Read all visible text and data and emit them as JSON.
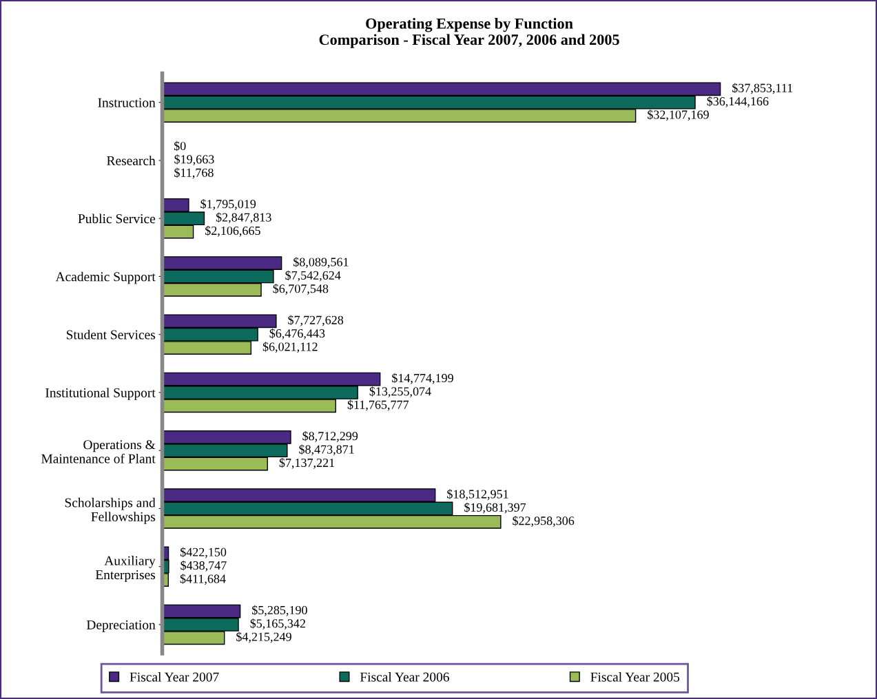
{
  "chart_data": {
    "type": "bar",
    "orientation": "horizontal",
    "title": "Operating Expense by Function\nComparison - Fiscal Year 2007, 2006 and 2005",
    "categories": [
      "Instruction",
      "Research",
      "Public Service",
      "Academic Support",
      "Student Services",
      "Institutional Support",
      "Operations &\nMaintenance of Plant",
      "Scholarships and\nFellowships",
      "Auxiliary\nEnterprises",
      "Depreciation"
    ],
    "series": [
      {
        "name": "Fiscal Year 2007",
        "color": "#4b2a84",
        "values": [
          37853111,
          0,
          1795019,
          8089561,
          7727628,
          14774199,
          8712299,
          18512951,
          422150,
          5285190
        ],
        "value_labels": [
          "$37,853,111",
          "$0",
          "$1,795,019",
          "$8,089,561",
          "$7,727,628",
          "$14,774,199",
          "$8,712,299",
          "$18,512,951",
          "$422,150",
          "$5,285,190"
        ]
      },
      {
        "name": "Fiscal Year 2006",
        "color": "#0c6b5c",
        "values": [
          36144166,
          19663,
          2847813,
          7542624,
          6476443,
          13255074,
          8473871,
          19681397,
          438747,
          5165342
        ],
        "value_labels": [
          "$36,144,166",
          "$19,663",
          "$2,847,813",
          "$7,542,624",
          "$6,476,443",
          "$13,255,074",
          "$8,473,871",
          "$19,681,397",
          "$438,747",
          "$5,165,342"
        ]
      },
      {
        "name": "Fiscal Year 2005",
        "color": "#9bbb59",
        "values": [
          32107169,
          11768,
          2106665,
          6707548,
          6021112,
          11765777,
          7137221,
          22958306,
          411684,
          4215249
        ],
        "value_labels": [
          "$32,107,169",
          "$11,768",
          "$2,106,665",
          "$6,707,548",
          "$6,021,112",
          "$11,765,777",
          "$7,137,221",
          "$22,958,306",
          "$411,684",
          "$4,215,249"
        ]
      }
    ],
    "legend": "bottom",
    "grid": false,
    "tick_labels": "y"
  }
}
